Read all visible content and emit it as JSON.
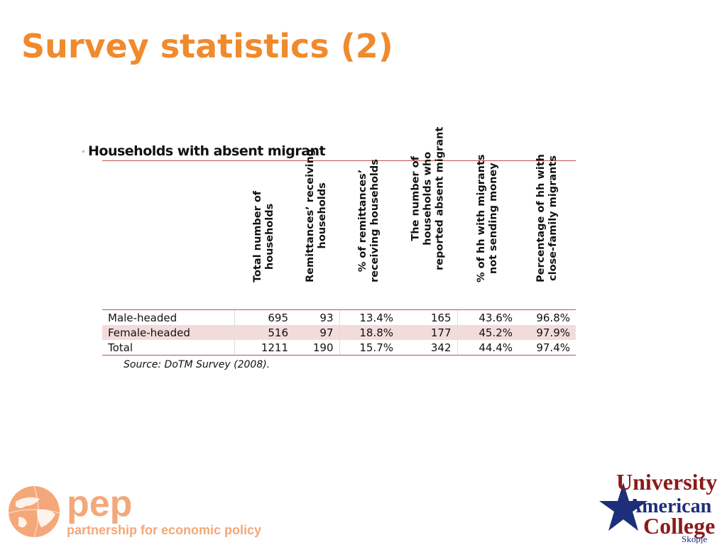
{
  "slide": {
    "title": "Survey statistics (2)"
  },
  "table": {
    "caption": "Households with absent migrant",
    "columns": [
      {
        "lines": [
          "Total number of",
          "households"
        ]
      },
      {
        "lines": [
          "Remittances’ receiving",
          "households"
        ]
      },
      {
        "lines": [
          "% of remittances’",
          "receiving households"
        ]
      },
      {
        "lines": [
          "The number of",
          "households who",
          "reported absent migrant"
        ]
      },
      {
        "lines": [
          "% of hh with migrants",
          "not sending money"
        ]
      },
      {
        "lines": [
          "Percentage of hh with",
          "close-family migrants"
        ]
      }
    ],
    "rows": [
      {
        "label": "Male-headed",
        "values": [
          "695",
          "93",
          "13.4%",
          "165",
          "43.6%",
          "96.8%"
        ]
      },
      {
        "label": "Female-headed",
        "values": [
          "516",
          "97",
          "18.8%",
          "177",
          "45.2%",
          "97.9%"
        ]
      },
      {
        "label": "Total",
        "values": [
          "1211",
          "190",
          "15.7%",
          "342",
          "44.4%",
          "97.4%"
        ]
      }
    ],
    "source": "Source: DoTM Survey (2008)."
  },
  "logos": {
    "pep": {
      "name": "pep",
      "tagline": "partnership for economic policy",
      "color": "#f4a87a"
    },
    "uac": {
      "line1": "University",
      "line2": "American",
      "line3": "College",
      "line4": "Skopje",
      "color_red": "#8b1a1a",
      "color_blue": "#1d2e7a"
    }
  },
  "colors": {
    "title": "#f08a2c",
    "rule": "#c0504d",
    "band": "#f2dcdb"
  }
}
